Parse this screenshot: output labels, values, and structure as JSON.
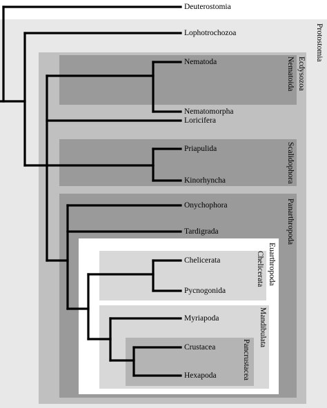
{
  "taxa": {
    "deuterostomia": "Deuterostomia",
    "lophotrochozoa": "Lophotrochozoa",
    "nematoda": "Nematoda",
    "nematomorpha": "Nematomorpha",
    "loricifera": "Loricifera",
    "priapulida": "Priapulida",
    "kinorhyncha": "Kinorhyncha",
    "onychophora": "Onychophora",
    "tardigrada": "Tardigrada",
    "chelicerata": "Chelicerata",
    "pycnogonida": "Pycnogonida",
    "myriapoda": "Myriapoda",
    "crustacea": "Crustacea",
    "hexapoda": "Hexapoda"
  },
  "clades": {
    "protostomia": "Protostomia",
    "ecdysozoa": "Ecdysozoa",
    "nematoida": "Nematoida",
    "scalidophora": "Scalidophora",
    "panarthropoda": "Panarthropoda",
    "euarthropoda": "Euarthropoda",
    "chelicerata": "Chelicerata",
    "mandibulata": "Mandibulata",
    "pancrustacea": "Pancrustacea"
  },
  "colors": {
    "protostomia_box": "#e8e8e8",
    "ecdysozoa_box": "#c0c0c0",
    "group_box": "#9a9a9a",
    "euarthropoda_box": "#ffffff",
    "subgroup_box": "#d8d8d8",
    "pancrustacea_box": "#b4b4b4",
    "branch": "#000000"
  }
}
